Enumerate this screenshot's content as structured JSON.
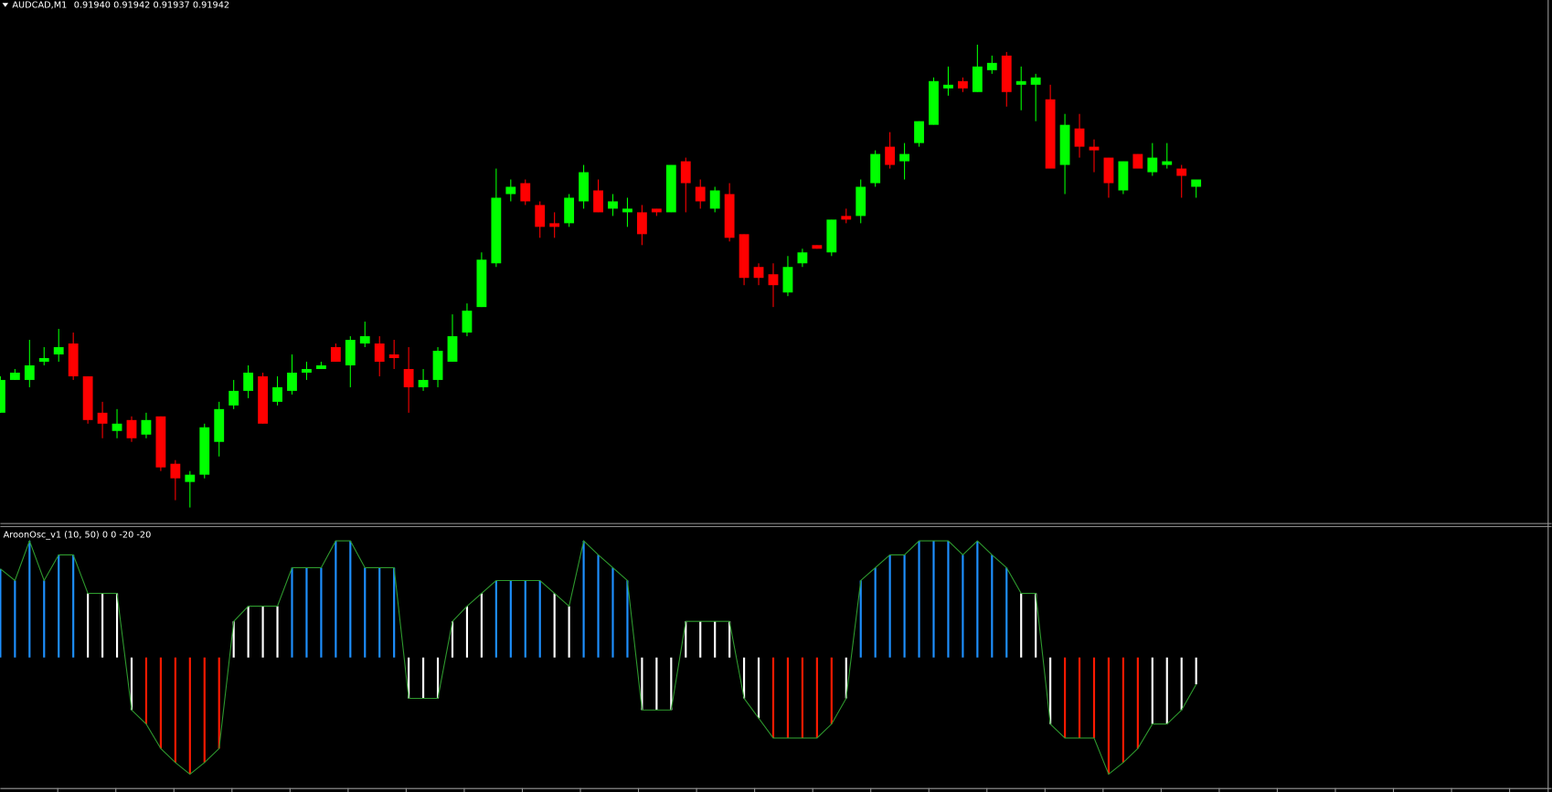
{
  "chart_data": [
    {
      "type": "candlestick",
      "title": "AUDCAD,M1",
      "price_labels": [
        "0.91940",
        "0.91942",
        "0.91937",
        "0.91942"
      ],
      "up_color": "#00ff00",
      "down_color": "#ff0000",
      "wick_color": "#00ff00",
      "ylim": [
        0.91848,
        0.91988
      ],
      "open": [
        0.91878,
        0.91887,
        0.91887,
        0.91892,
        0.91894,
        0.91897,
        0.91888,
        0.91878,
        0.91873,
        0.91876,
        0.91872,
        0.91877,
        0.91864,
        0.91859,
        0.91861,
        0.9187,
        0.9188,
        0.91884,
        0.91888,
        0.91881,
        0.91884,
        0.91889,
        0.9189,
        0.91896,
        0.91891,
        0.91897,
        0.91897,
        0.91894,
        0.9189,
        0.91885,
        0.91887,
        0.91892,
        0.919,
        0.91907,
        0.91919,
        0.91938,
        0.91941,
        0.91935,
        0.9193,
        0.9193,
        0.91936,
        0.91939,
        0.91934,
        0.91933,
        0.91933,
        0.91934,
        0.91933,
        0.91947,
        0.9194,
        0.91934,
        0.91938,
        0.91927,
        0.91918,
        0.91916,
        0.91911,
        0.91919,
        0.91924,
        0.91922,
        0.91932,
        0.91932,
        0.91941,
        0.91951,
        0.91947,
        0.91952,
        0.91957,
        0.91967,
        0.91969,
        0.91966,
        0.91972,
        0.91976,
        0.91968,
        0.91968,
        0.91964,
        0.91946,
        0.91956,
        0.91951,
        0.91948,
        0.91939,
        0.91949,
        0.91944,
        0.91946,
        0.91945,
        0.9194
      ],
      "high": [
        0.91888,
        0.9189,
        0.91898,
        0.91896,
        0.91901,
        0.919,
        0.91888,
        0.91881,
        0.91879,
        0.91877,
        0.91878,
        0.91877,
        0.91865,
        0.91862,
        0.91875,
        0.91881,
        0.91887,
        0.91891,
        0.91889,
        0.91888,
        0.91894,
        0.91892,
        0.91892,
        0.91897,
        0.91899,
        0.91903,
        0.91899,
        0.91898,
        0.91896,
        0.9189,
        0.91896,
        0.91905,
        0.91908,
        0.91922,
        0.91945,
        0.91942,
        0.91942,
        0.91936,
        0.91933,
        0.91938,
        0.91946,
        0.91942,
        0.91938,
        0.91937,
        0.91935,
        0.91934,
        0.91946,
        0.91948,
        0.91942,
        0.9194,
        0.91941,
        0.91927,
        0.91919,
        0.91919,
        0.91921,
        0.91923,
        0.91924,
        0.91931,
        0.91934,
        0.91942,
        0.9195,
        0.91955,
        0.91952,
        0.91958,
        0.9197,
        0.91973,
        0.9197,
        0.91979,
        0.91976,
        0.91977,
        0.91973,
        0.91971,
        0.91968,
        0.9196,
        0.9196,
        0.91953,
        0.91948,
        0.91947,
        0.91949,
        0.91952,
        0.91952,
        0.91946,
        0.91942
      ],
      "low": [
        0.91878,
        0.91887,
        0.91885,
        0.91891,
        0.91892,
        0.91887,
        0.91875,
        0.91871,
        0.91871,
        0.9187,
        0.91871,
        0.91862,
        0.91854,
        0.91852,
        0.9186,
        0.91866,
        0.91879,
        0.91882,
        0.91875,
        0.9188,
        0.91883,
        0.91887,
        0.9189,
        0.91892,
        0.91885,
        0.91896,
        0.91888,
        0.9189,
        0.91878,
        0.91884,
        0.91885,
        0.91892,
        0.91899,
        0.91907,
        0.91918,
        0.91936,
        0.91935,
        0.91926,
        0.91926,
        0.91929,
        0.91934,
        0.91933,
        0.91932,
        0.91929,
        0.91924,
        0.91932,
        0.91933,
        0.91933,
        0.91934,
        0.91933,
        0.91925,
        0.91913,
        0.91913,
        0.91907,
        0.9191,
        0.91918,
        0.91923,
        0.91921,
        0.9193,
        0.9193,
        0.9194,
        0.91945,
        0.91942,
        0.91951,
        0.91957,
        0.91965,
        0.91966,
        0.91966,
        0.91971,
        0.91962,
        0.91961,
        0.91958,
        0.91945,
        0.91938,
        0.91948,
        0.91944,
        0.91937,
        0.91938,
        0.91945,
        0.91943,
        0.91945,
        0.91937,
        0.91937
      ],
      "close": [
        0.91887,
        0.91889,
        0.91891,
        0.91893,
        0.91896,
        0.91888,
        0.91876,
        0.91875,
        0.91875,
        0.91871,
        0.91876,
        0.91863,
        0.9186,
        0.91861,
        0.91874,
        0.91879,
        0.91884,
        0.91889,
        0.91875,
        0.91885,
        0.91889,
        0.9189,
        0.91891,
        0.91892,
        0.91898,
        0.91899,
        0.91892,
        0.91893,
        0.91885,
        0.91887,
        0.91895,
        0.91899,
        0.91906,
        0.9192,
        0.91937,
        0.9194,
        0.91936,
        0.91929,
        0.91929,
        0.91937,
        0.91944,
        0.91933,
        0.91936,
        0.91934,
        0.91927,
        0.91933,
        0.91946,
        0.91941,
        0.91936,
        0.91939,
        0.91926,
        0.91915,
        0.91915,
        0.91913,
        0.91918,
        0.91922,
        0.91923,
        0.91931,
        0.91931,
        0.9194,
        0.91949,
        0.91946,
        0.91949,
        0.91958,
        0.91969,
        0.91968,
        0.91967,
        0.91973,
        0.91974,
        0.91966,
        0.91969,
        0.9197,
        0.91945,
        0.91957,
        0.91951,
        0.9195,
        0.91941,
        0.91947,
        0.91945,
        0.91948,
        0.91947,
        0.91943,
        0.91942
      ]
    },
    {
      "type": "bar",
      "title": "AroonOsc_v1 (10, 50) 0 0 -20 -20",
      "line_color": "#2e9a2e",
      "ylim": [
        -100,
        100
      ],
      "values": [
        76,
        66,
        100,
        66,
        88,
        88,
        55,
        55,
        55,
        -45,
        -57,
        -78,
        -90,
        -100,
        -90,
        -78,
        31,
        44,
        44,
        44,
        77,
        77,
        77,
        100,
        100,
        77,
        77,
        77,
        -35,
        -35,
        -35,
        31,
        44,
        55,
        66,
        66,
        66,
        66,
        55,
        44,
        100,
        88,
        77,
        66,
        -45,
        -45,
        -45,
        31,
        31,
        31,
        31,
        -35,
        -52,
        -69,
        -69,
        -69,
        -69,
        -57,
        -35,
        66,
        77,
        88,
        88,
        100,
        100,
        100,
        88,
        100,
        88,
        77,
        55,
        55,
        -57,
        -69,
        -69,
        -69,
        -100,
        -90,
        -78,
        -57,
        -57,
        -45,
        -23
      ],
      "colors": [
        "#1e90ff",
        "#1e90ff",
        "#1e90ff",
        "#1e90ff",
        "#1e90ff",
        "#1e90ff",
        "#ffffff",
        "#ffffff",
        "#ffffff",
        "#ffffff",
        "#ff1a00",
        "#ff1a00",
        "#ff1a00",
        "#ff1a00",
        "#ff1a00",
        "#ff1a00",
        "#ffffff",
        "#ffffff",
        "#ffffff",
        "#ffffff",
        "#1e90ff",
        "#1e90ff",
        "#1e90ff",
        "#1e90ff",
        "#1e90ff",
        "#1e90ff",
        "#1e90ff",
        "#1e90ff",
        "#ffffff",
        "#ffffff",
        "#ffffff",
        "#ffffff",
        "#ffffff",
        "#ffffff",
        "#1e90ff",
        "#1e90ff",
        "#1e90ff",
        "#1e90ff",
        "#ffffff",
        "#ffffff",
        "#1e90ff",
        "#1e90ff",
        "#1e90ff",
        "#1e90ff",
        "#ffffff",
        "#ffffff",
        "#ffffff",
        "#ffffff",
        "#ffffff",
        "#ffffff",
        "#ffffff",
        "#ffffff",
        "#ffffff",
        "#ff1a00",
        "#ff1a00",
        "#ff1a00",
        "#ff1a00",
        "#ff1a00",
        "#ffffff",
        "#1e90ff",
        "#1e90ff",
        "#1e90ff",
        "#1e90ff",
        "#1e90ff",
        "#1e90ff",
        "#1e90ff",
        "#1e90ff",
        "#1e90ff",
        "#1e90ff",
        "#1e90ff",
        "#ffffff",
        "#ffffff",
        "#ffffff",
        "#ff1a00",
        "#ff1a00",
        "#ff1a00",
        "#ff1a00",
        "#ff1a00",
        "#ff1a00",
        "#ffffff",
        "#ffffff",
        "#ffffff",
        "#ffffff"
      ]
    }
  ]
}
